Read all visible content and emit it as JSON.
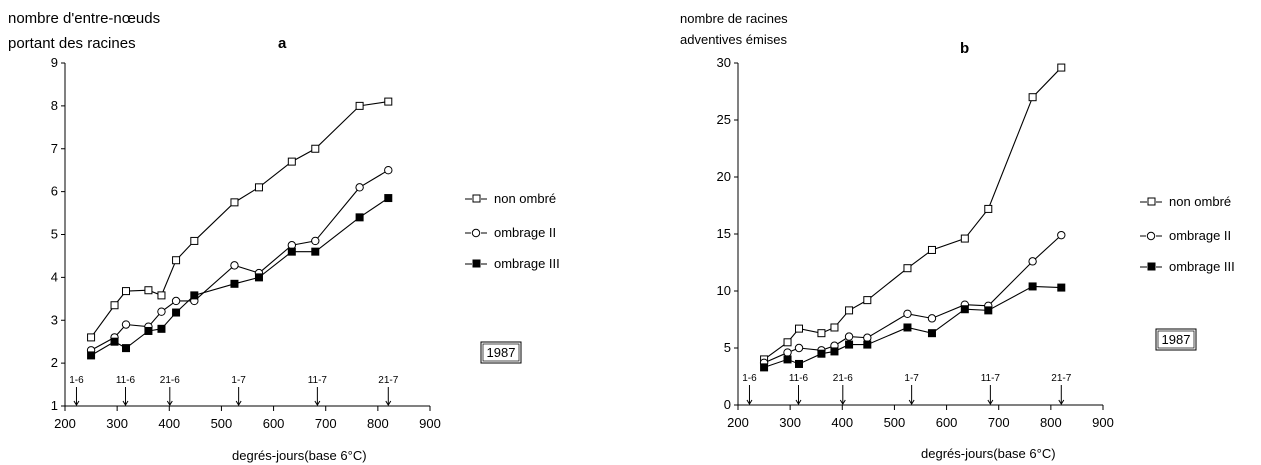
{
  "chart_data": [
    {
      "type": "line",
      "panel": "a",
      "ylabel_lines": [
        "nombre d'entre-nœuds",
        "portant des racines"
      ],
      "xlabel": "degrés-jours(base  6°C)",
      "xlim": [
        200,
        900
      ],
      "ylim": [
        1,
        9
      ],
      "xticks": [
        200,
        300,
        400,
        500,
        600,
        700,
        800,
        900
      ],
      "yticks": [
        1,
        2,
        3,
        4,
        5,
        6,
        7,
        8,
        9
      ],
      "date_markers": [
        {
          "label": "1-6",
          "x": 222
        },
        {
          "label": "11-6",
          "x": 316
        },
        {
          "label": "21-6",
          "x": 401
        },
        {
          "label": "1-7",
          "x": 533
        },
        {
          "label": "11-7",
          "x": 684
        },
        {
          "label": "21-7",
          "x": 820
        }
      ],
      "year_box": "1987",
      "series": [
        {
          "name": "non ombré",
          "marker": "open-square",
          "x": [
            250,
            295,
            317,
            360,
            385,
            413,
            448,
            525,
            572,
            635,
            680,
            765,
            820
          ],
          "y": [
            2.6,
            3.35,
            3.68,
            3.7,
            3.58,
            4.4,
            4.85,
            5.75,
            6.1,
            6.7,
            7.0,
            8.0,
            8.1
          ]
        },
        {
          "name": "ombrage II",
          "marker": "open-circle",
          "x": [
            250,
            295,
            317,
            360,
            385,
            413,
            448,
            525,
            572,
            635,
            680,
            765,
            820
          ],
          "y": [
            2.3,
            2.6,
            2.9,
            2.85,
            3.2,
            3.45,
            3.45,
            4.28,
            4.1,
            4.75,
            4.85,
            6.1,
            6.5
          ]
        },
        {
          "name": "ombrage III",
          "marker": "filled-square",
          "x": [
            250,
            295,
            317,
            360,
            385,
            413,
            448,
            525,
            572,
            635,
            680,
            765,
            820
          ],
          "y": [
            2.18,
            2.5,
            2.35,
            2.75,
            2.8,
            3.18,
            3.58,
            3.85,
            4.0,
            4.6,
            4.6,
            5.4,
            5.85
          ]
        }
      ]
    },
    {
      "type": "line",
      "panel": "b",
      "ylabel_lines": [
        "nombre de racines",
        "adventives  émises"
      ],
      "xlabel": "degrés-jours(base  6°C)",
      "xlim": [
        200,
        900
      ],
      "ylim": [
        0,
        30
      ],
      "xticks": [
        200,
        300,
        400,
        500,
        600,
        700,
        800,
        900
      ],
      "yticks": [
        0,
        5,
        10,
        15,
        20,
        25,
        30
      ],
      "date_markers": [
        {
          "label": "1-6",
          "x": 222
        },
        {
          "label": "11-6",
          "x": 316
        },
        {
          "label": "21-6",
          "x": 401
        },
        {
          "label": "1-7",
          "x": 533
        },
        {
          "label": "11-7",
          "x": 684
        },
        {
          "label": "21-7",
          "x": 820
        }
      ],
      "year_box": "1987",
      "series": [
        {
          "name": "non ombré",
          "marker": "open-square",
          "x": [
            250,
            295,
            317,
            360,
            385,
            413,
            448,
            525,
            572,
            635,
            680,
            765,
            820
          ],
          "y": [
            4.0,
            5.5,
            6.7,
            6.3,
            6.8,
            8.3,
            9.2,
            12.0,
            13.6,
            14.6,
            17.2,
            27.0,
            29.6
          ]
        },
        {
          "name": "ombrage II",
          "marker": "open-circle",
          "x": [
            250,
            295,
            317,
            360,
            385,
            413,
            448,
            525,
            572,
            635,
            680,
            765,
            820
          ],
          "y": [
            3.7,
            4.6,
            5.0,
            4.8,
            5.2,
            6.0,
            5.9,
            8.0,
            7.6,
            8.8,
            8.7,
            12.6,
            14.9
          ]
        },
        {
          "name": "ombrage III",
          "marker": "filled-square",
          "x": [
            250,
            295,
            317,
            360,
            385,
            413,
            448,
            525,
            572,
            635,
            680,
            765,
            820
          ],
          "y": [
            3.3,
            4.0,
            3.6,
            4.5,
            4.7,
            5.3,
            5.3,
            6.8,
            6.3,
            8.4,
            8.3,
            10.4,
            10.3
          ]
        }
      ]
    }
  ]
}
